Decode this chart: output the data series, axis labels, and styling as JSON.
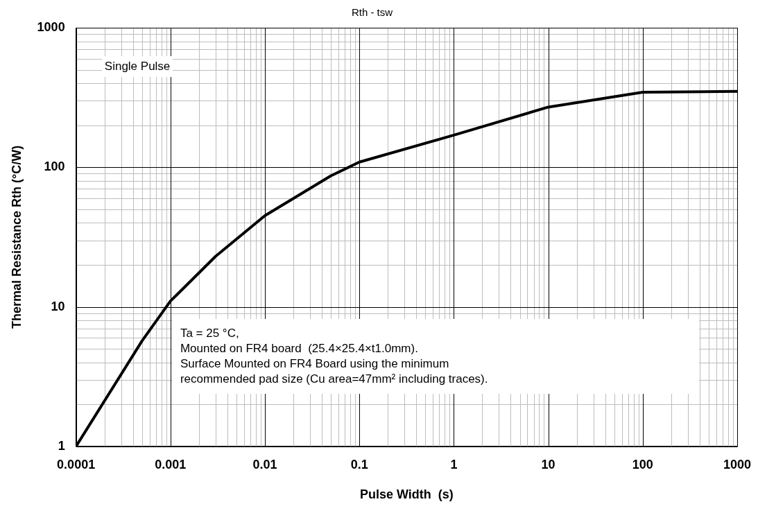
{
  "chart_data": {
    "type": "line",
    "title": "Rth - tsw",
    "xlabel": "Pulse Width  (s)",
    "ylabel": "Thermal Resistance Rth (°C/W)",
    "x": [
      0.0001,
      0.0005,
      0.001,
      0.003,
      0.01,
      0.05,
      0.1,
      1,
      10,
      100,
      1000
    ],
    "series": [
      {
        "color": "#000000",
        "values": [
          1,
          5.7,
          11,
          23,
          45,
          87,
          109,
          170,
          270,
          345,
          350
        ]
      }
    ],
    "log": "xy",
    "xlim": [
      0.0001,
      1000
    ],
    "ylim": [
      1,
      1000
    ],
    "xticks": [
      0.0001,
      0.001,
      0.01,
      0.1,
      1,
      10,
      100,
      1000
    ],
    "yticks": [
      1,
      10,
      100,
      1000
    ],
    "grid": true,
    "legend": false,
    "marker": "none",
    "line_style": "solid",
    "annotations": [
      "Single Pulse",
      "Ta = 25 °C,\nMounted on FR4 board  (25.4×25.4×t1.0mm).\nSurface Mounted on FR4 Board using the minimum\nrecommended pad size (Cu area=47mm² including traces)."
    ]
  }
}
